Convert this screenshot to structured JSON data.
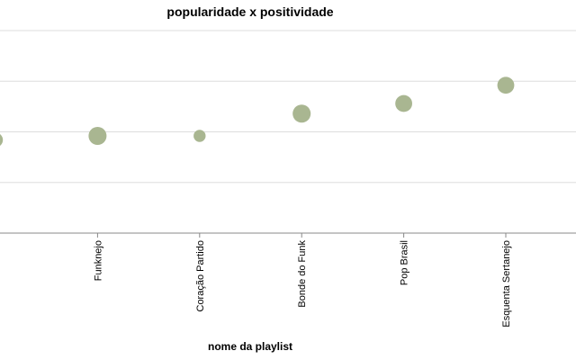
{
  "chart_data": {
    "type": "scatter",
    "title": "popularidade x positividade",
    "xlabel": "nome da playlist",
    "ylabel": "",
    "categories": [
      "",
      "Funknejo",
      "Coração Partido",
      "Bonde do Funk",
      "Pop Brasil",
      "Esquenta Sertanejo"
    ],
    "values": [
      0.46,
      0.48,
      0.48,
      0.59,
      0.64,
      0.73
    ],
    "sizes": [
      0.7,
      1.0,
      0.45,
      1.0,
      0.9,
      0.9
    ],
    "ylim": [
      0,
      1
    ],
    "grid": true,
    "point_color": "#a9b691"
  }
}
